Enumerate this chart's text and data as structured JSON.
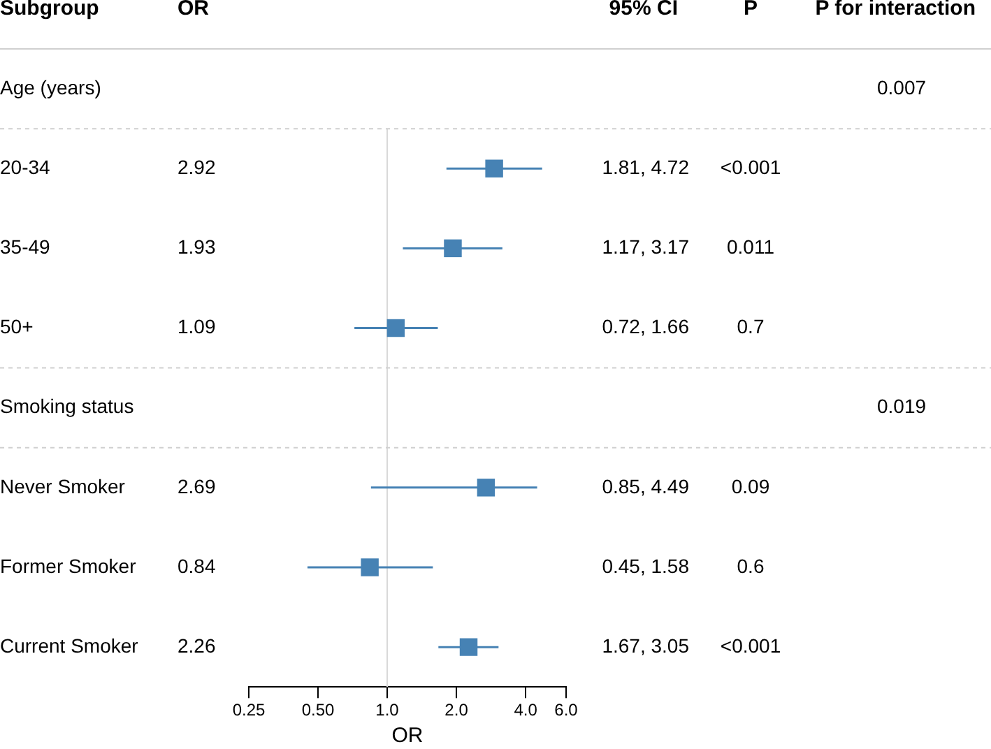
{
  "chart_data": {
    "type": "scatter",
    "orientation": "horizontal",
    "ylabel": "Subgroup",
    "xlabel": "OR",
    "categories": [
      "Age (years)",
      "20-34",
      "35-49",
      "50+",
      "Smoking status",
      "Never Smoker",
      "Former Smoker",
      "Current Smoker"
    ],
    "series": [
      {
        "name": "OR",
        "color": "#4682b4",
        "values": [
          null,
          2.92,
          1.93,
          1.09,
          null,
          2.69,
          0.84,
          2.26
        ],
        "errors": [
          null,
          [
            1.81,
            4.72
          ],
          [
            1.17,
            3.17
          ],
          [
            0.72,
            1.66
          ],
          null,
          [
            0.85,
            4.49
          ],
          [
            0.45,
            1.58
          ],
          [
            1.67,
            3.05
          ]
        ],
        "value_labels": [
          null,
          "2.92",
          "1.93",
          "1.09",
          null,
          "2.69",
          "0.84",
          "2.26"
        ]
      }
    ],
    "annotations": [
      "95% CI",
      "P",
      "P for interaction",
      "0.007",
      "1.81, 4.72",
      "<0.001",
      "1.17, 3.17",
      "0.011",
      "0.72, 1.66",
      "0.7",
      "0.019",
      "0.85, 4.49",
      "0.09",
      "0.45, 1.58",
      "0.6",
      "1.67, 3.05",
      "<0.001"
    ],
    "ref_lines": [
      {
        "axis": "x",
        "value": 1,
        "color": "#d9d9d9"
      }
    ],
    "log": "x",
    "xlim": [
      0.25,
      6
    ],
    "xticks": [
      0.25,
      {
        "value": 0.5,
        "label": "0.50"
      },
      {
        "value": 1,
        "label": "1.0"
      },
      {
        "value": 2,
        "label": "2.0"
      },
      {
        "value": 4,
        "label": "4.0"
      },
      {
        "value": 6,
        "label": "6.0"
      }
    ],
    "grid": false,
    "legend": false,
    "marker": "square"
  }
}
